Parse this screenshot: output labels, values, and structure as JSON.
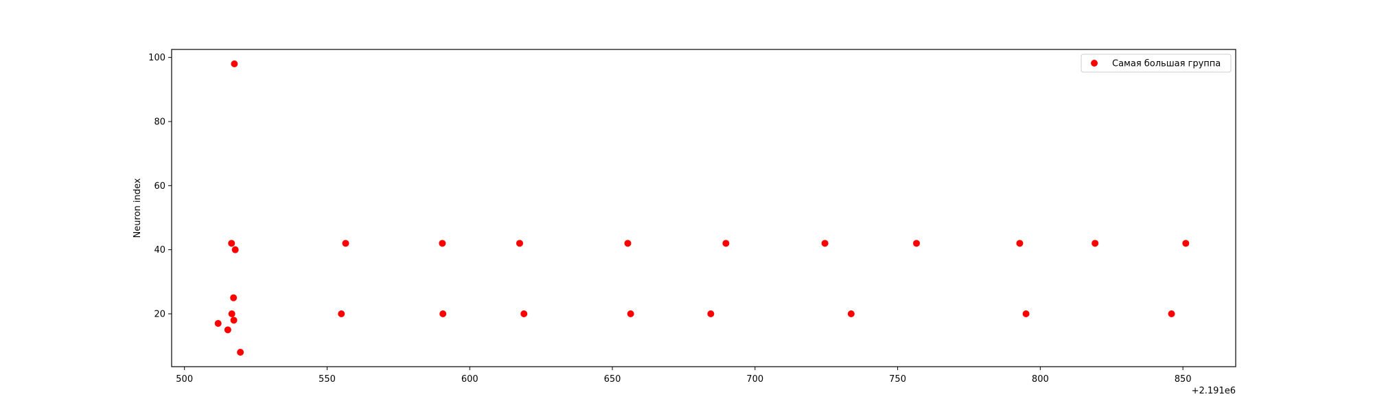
{
  "chart_data": {
    "type": "scatter",
    "title": "",
    "xlabel": "",
    "ylabel": "Neuron index",
    "x_offset_label": "+2.191e6",
    "xlim": [
      495.5,
      868.5
    ],
    "ylim": [
      3.5,
      102.5
    ],
    "xticks": [
      500,
      550,
      600,
      650,
      700,
      750,
      800,
      850
    ],
    "yticks": [
      20,
      40,
      60,
      80,
      100
    ],
    "grid": false,
    "legend_position": "top-right",
    "series": [
      {
        "name": "Самая большая группа",
        "color": "#ff0000",
        "marker": "circle",
        "points": [
          {
            "x": 517.5,
            "y": 98
          },
          {
            "x": 516.5,
            "y": 42
          },
          {
            "x": 517.8,
            "y": 40
          },
          {
            "x": 517.2,
            "y": 25
          },
          {
            "x": 516.6,
            "y": 20
          },
          {
            "x": 517.3,
            "y": 18
          },
          {
            "x": 511.8,
            "y": 17
          },
          {
            "x": 515.2,
            "y": 15
          },
          {
            "x": 519.6,
            "y": 8
          },
          {
            "x": 556.5,
            "y": 42
          },
          {
            "x": 555.0,
            "y": 20
          },
          {
            "x": 590.4,
            "y": 42
          },
          {
            "x": 590.6,
            "y": 20
          },
          {
            "x": 617.5,
            "y": 42
          },
          {
            "x": 619.0,
            "y": 20
          },
          {
            "x": 655.4,
            "y": 42
          },
          {
            "x": 656.4,
            "y": 20
          },
          {
            "x": 684.5,
            "y": 20
          },
          {
            "x": 689.8,
            "y": 42
          },
          {
            "x": 724.5,
            "y": 42
          },
          {
            "x": 733.7,
            "y": 20
          },
          {
            "x": 756.6,
            "y": 42
          },
          {
            "x": 792.8,
            "y": 42
          },
          {
            "x": 795.0,
            "y": 20
          },
          {
            "x": 819.2,
            "y": 42
          },
          {
            "x": 846.0,
            "y": 20
          },
          {
            "x": 851.0,
            "y": 42
          }
        ]
      }
    ]
  }
}
